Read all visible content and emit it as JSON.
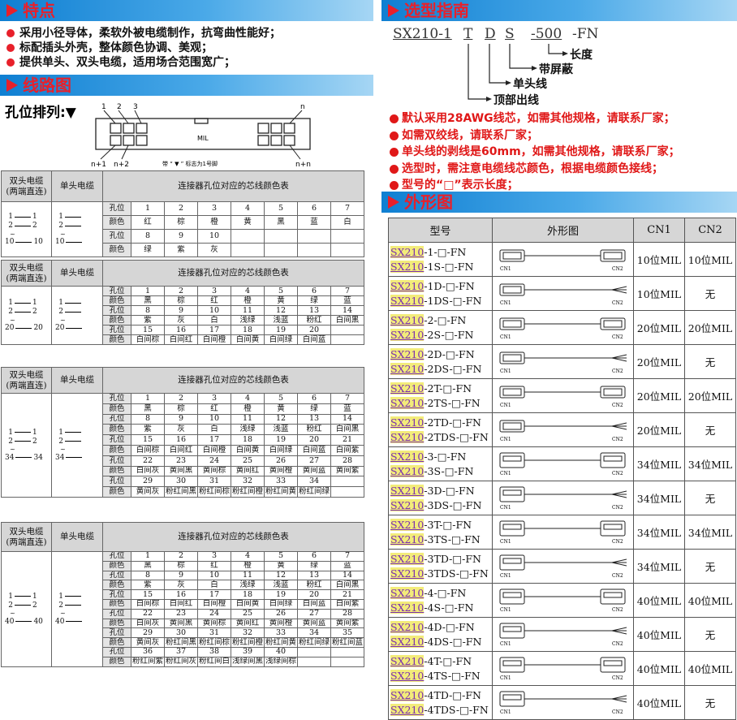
{
  "features": {
    "title": "特点",
    "items": [
      "采用小径导体，柔软外被电缆制作，抗弯曲性能好；",
      "标配插头外壳，整体颜色协调、美观；",
      "提供单头、双头电缆，适用场合范围宽广；"
    ]
  },
  "wiring": {
    "title": "线路图",
    "pin_layout": {
      "label": "孔位排列:▼",
      "top_left": [
        "1",
        "2",
        "3"
      ],
      "top_right": "n",
      "bottom_left": [
        "n+1",
        "n+2"
      ],
      "bottom_right": "n+n",
      "model": "MIL",
      "note": "带 “ ▼ ” 标志为1号脚"
    },
    "table_headers": {
      "double": [
        "双头电缆",
        "(两端直连)"
      ],
      "single": "单头电缆",
      "colors": "连接器孔位对应的芯线颜色表"
    },
    "row_labels": [
      "孔位",
      "颜色"
    ],
    "gap_mark": "~",
    "tables": [
      {
        "ends": [
          1,
          2,
          10
        ],
        "rows": [
          {
            "pins": [
              1,
              2,
              3,
              4,
              5,
              6,
              7
            ],
            "colors": [
              "红",
              "棕",
              "橙",
              "黄",
              "黑",
              "蓝",
              "白"
            ]
          },
          {
            "pins": [
              8,
              9,
              10
            ],
            "colors": [
              "绿",
              "紫",
              "灰"
            ]
          }
        ]
      },
      {
        "ends": [
          1,
          2,
          20
        ],
        "rows": [
          {
            "pins": [
              1,
              2,
              3,
              4,
              5,
              6,
              7
            ],
            "colors": [
              "黑",
              "棕",
              "红",
              "橙",
              "黄",
              "绿",
              "蓝"
            ]
          },
          {
            "pins": [
              8,
              9,
              10,
              11,
              12,
              13,
              14
            ],
            "colors": [
              "紫",
              "灰",
              "白",
              "浅绿",
              "浅蓝",
              "粉红",
              "白间黑"
            ]
          },
          {
            "pins": [
              15,
              16,
              17,
              18,
              19,
              20
            ],
            "colors": [
              "白间棕",
              "白间红",
              "白间橙",
              "白间黄",
              "白间绿",
              "白间蓝"
            ]
          }
        ]
      },
      {
        "ends": [
          1,
          2,
          34
        ],
        "rows": [
          {
            "pins": [
              1,
              2,
              3,
              4,
              5,
              6,
              7
            ],
            "colors": [
              "黑",
              "棕",
              "红",
              "橙",
              "黄",
              "绿",
              "蓝"
            ]
          },
          {
            "pins": [
              8,
              9,
              10,
              11,
              12,
              13,
              14
            ],
            "colors": [
              "紫",
              "灰",
              "白",
              "浅绿",
              "浅蓝",
              "粉红",
              "白间黑"
            ]
          },
          {
            "pins": [
              15,
              16,
              17,
              18,
              19,
              20,
              21
            ],
            "colors": [
              "白间棕",
              "白间红",
              "白间橙",
              "白间黄",
              "白间绿",
              "白间蓝",
              "白间紫"
            ]
          },
          {
            "pins": [
              22,
              23,
              24,
              25,
              26,
              27,
              28
            ],
            "colors": [
              "白间灰",
              "黄间黑",
              "黄间棕",
              "黄间红",
              "黄间橙",
              "黄间蓝",
              "黄间紫"
            ]
          },
          {
            "pins": [
              29,
              30,
              31,
              32,
              33,
              34
            ],
            "colors": [
              "黄间灰",
              "粉红间黑",
              "粉红间棕",
              "粉红间橙",
              "粉红间黄",
              "粉红间绿"
            ]
          }
        ]
      },
      {
        "ends": [
          1,
          2,
          40
        ],
        "rows": [
          {
            "pins": [
              1,
              2,
              3,
              4,
              5,
              6,
              7
            ],
            "colors": [
              "黑",
              "棕",
              "红",
              "橙",
              "黄",
              "绿",
              "蓝"
            ]
          },
          {
            "pins": [
              8,
              9,
              10,
              11,
              12,
              13,
              14
            ],
            "colors": [
              "紫",
              "灰",
              "白",
              "浅绿",
              "浅蓝",
              "粉红",
              "白间黑"
            ]
          },
          {
            "pins": [
              15,
              16,
              17,
              18,
              19,
              20,
              21
            ],
            "colors": [
              "白间棕",
              "白间红",
              "白间橙",
              "白间黄",
              "白间绿",
              "白间蓝",
              "白间紫"
            ]
          },
          {
            "pins": [
              22,
              23,
              24,
              25,
              26,
              27,
              28
            ],
            "colors": [
              "白间灰",
              "黄间黑",
              "黄间棕",
              "黄间红",
              "黄间橙",
              "黄间蓝",
              "黄间紫"
            ]
          },
          {
            "pins": [
              29,
              30,
              31,
              32,
              33,
              34,
              35
            ],
            "colors": [
              "黄间灰",
              "粉红间黑",
              "粉红间棕",
              "粉红间橙",
              "粉红间黄",
              "粉红间绿",
              "粉红间蓝"
            ]
          },
          {
            "pins": [
              36,
              37,
              38,
              39,
              40
            ],
            "colors": [
              "粉红间紫",
              "粉红间灰",
              "粉红间白",
              "浅绿间黑",
              "浅绿间棕"
            ]
          }
        ]
      }
    ]
  },
  "selection": {
    "title": "选型指南",
    "code": {
      "series": "SX210-1",
      "exit": "T",
      "head": "D",
      "shield": "S",
      "length": "-500",
      "suffix": "-FN"
    },
    "legend": {
      "length": "长度",
      "shield": "带屏蔽",
      "head": "单头线",
      "exit": "顶部出线"
    },
    "notes": [
      "默认采用28AWG线芯，如需其他规格，请联系厂家；",
      "如需双绞线，请联系厂家；",
      "单头线的剥线是60mm，如需其他规格，请联系厂家；",
      "选型时，需注意电缆线芯颜色，根据电缆颜色接线；",
      "型号的“□”表示长度；"
    ]
  },
  "shapes": {
    "title": "外形图",
    "headers": [
      "型号",
      "外形图",
      "CN1",
      "CN2"
    ],
    "prefix": "SX210",
    "rows": [
      {
        "models": [
          "-1-□-FN",
          "-1S-□-FN"
        ],
        "cn1": "10位MIL",
        "cn2": "10位MIL"
      },
      {
        "models": [
          "-1D-□-FN",
          "-1DS-□-FN"
        ],
        "cn1": "10位MIL",
        "cn2": "无"
      },
      {
        "models": [
          "-2-□-FN",
          "-2S-□-FN"
        ],
        "cn1": "20位MIL",
        "cn2": "20位MIL"
      },
      {
        "models": [
          "-2D-□-FN",
          "-2DS-□-FN"
        ],
        "cn1": "20位MIL",
        "cn2": "无"
      },
      {
        "models": [
          "-2T-□-FN",
          "-2TS-□-FN"
        ],
        "cn1": "20位MIL",
        "cn2": "20位MIL"
      },
      {
        "models": [
          "-2TD-□-FN",
          "-2TDS-□-FN"
        ],
        "cn1": "20位MIL",
        "cn2": "无"
      },
      {
        "models": [
          "-3-□-FN",
          "-3S-□-FN"
        ],
        "cn1": "34位MIL",
        "cn2": "34位MIL"
      },
      {
        "models": [
          "-3D-□-FN",
          "-3DS-□-FN"
        ],
        "cn1": "34位MIL",
        "cn2": "无"
      },
      {
        "models": [
          "-3T-□-FN",
          "-3TS-□-FN"
        ],
        "cn1": "34位MIL",
        "cn2": "34位MIL"
      },
      {
        "models": [
          "-3TD-□-FN",
          "-3TDS-□-FN"
        ],
        "cn1": "34位MIL",
        "cn2": "无"
      },
      {
        "models": [
          "-4-□-FN",
          "-4S-□-FN"
        ],
        "cn1": "40位MIL",
        "cn2": "40位MIL"
      },
      {
        "models": [
          "-4D-□-FN",
          "-4DS-□-FN"
        ],
        "cn1": "40位MIL",
        "cn2": "无"
      },
      {
        "models": [
          "-4T-□-FN",
          "-4TS-□-FN"
        ],
        "cn1": "40位MIL",
        "cn2": "40位MIL"
      },
      {
        "models": [
          "-4TD-□-FN",
          "-4TDS-□-FN"
        ],
        "cn1": "40位MIL",
        "cn2": "无"
      }
    ]
  }
}
